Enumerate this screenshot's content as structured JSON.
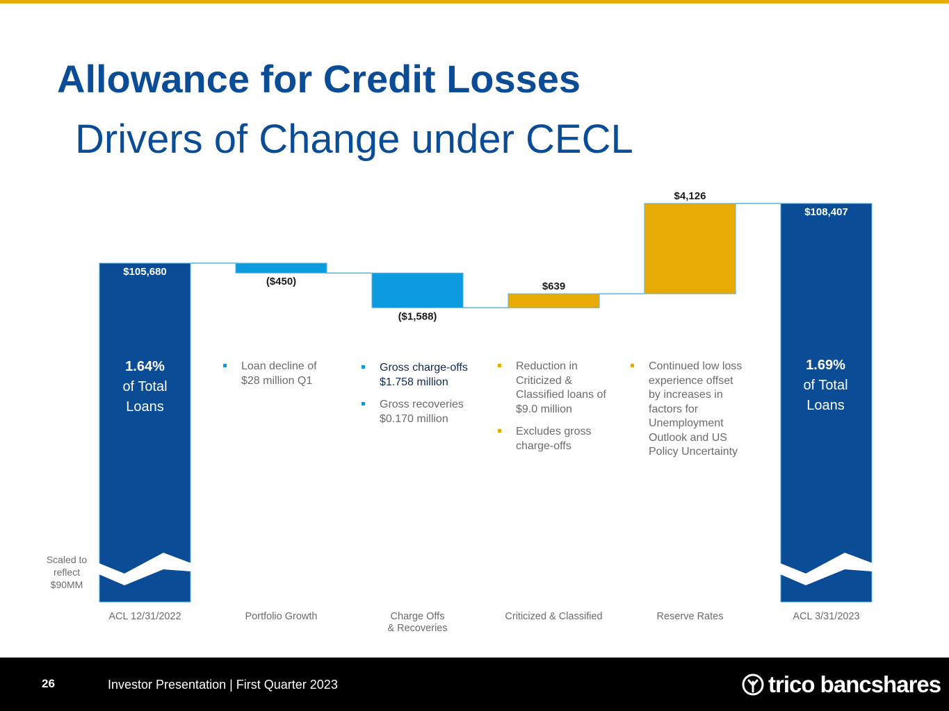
{
  "title": "Allowance for Credit Losses",
  "subtitle": "Drivers of Change under CECL",
  "colors": {
    "navy": "#0b4c97",
    "blue": "#0d9be0",
    "gold": "#e8ab06",
    "gray_text": "#6b6b6b",
    "footer_bg": "#000000"
  },
  "chart_data": {
    "type": "waterfall",
    "units": "$ thousands",
    "categories": [
      "ACL 12/31/2022",
      "Portfolio Growth",
      "Charge Offs & Recoveries",
      "Criticized & Classified",
      "Reserve Rates",
      "ACL  3/31/2023"
    ],
    "category_label_lines": [
      [
        "ACL 12/31/2022"
      ],
      [
        "Portfolio Growth"
      ],
      [
        "Charge Offs",
        "& Recoveries"
      ],
      [
        "Criticized & Classified"
      ],
      [
        "Reserve Rates"
      ],
      [
        "ACL  3/31/2023"
      ]
    ],
    "kinds": [
      "total",
      "change",
      "change",
      "change",
      "change",
      "total"
    ],
    "values": [
      105680,
      -450,
      -1588,
      639,
      4126,
      108407
    ],
    "labels": [
      "$105,680",
      "($450)",
      "($1,588)",
      "$639",
      "$4,126",
      "$108,407"
    ],
    "visible_range": [
      98000,
      109000
    ],
    "axis_break": "totals scaled (break shown on total bars)"
  },
  "annotations": {
    "start_pct": {
      "value": "1.64%",
      "line1": "of Total",
      "line2": "Loans"
    },
    "end_pct": {
      "value": "1.69%",
      "line1": "of Total",
      "line2": "Loans"
    },
    "scale_note": [
      "Scaled to",
      "reflect",
      "$90MM"
    ],
    "portfolio_growth": [
      "Loan decline of $28 million Q1"
    ],
    "charge_offs": [
      "Gross charge-offs $1.758 million",
      "Gross recoveries $0.170 million"
    ],
    "criticized": [
      "Reduction in Criticized & Classified loans of $9.0 million",
      "Excludes gross charge-offs"
    ],
    "reserve_rates": [
      "Continued low loss experience offset by increases in factors for Unemployment Outlook and US Policy Uncertainty"
    ]
  },
  "footer": {
    "page_number": "26",
    "deck_title": "Investor Presentation | First Quarter 2023",
    "logo_text": "trico bancshares"
  }
}
